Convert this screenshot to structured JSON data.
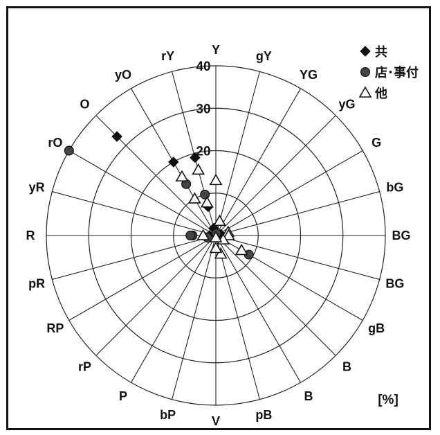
{
  "chart_data": {
    "type": "radar-scatter",
    "unit_label": "[%]",
    "r_ticks": [
      {
        "value": 20,
        "label": "20"
      },
      {
        "value": 30,
        "label": "30"
      },
      {
        "value": 40,
        "label": "40"
      }
    ],
    "r_rings": [
      10,
      20,
      30,
      40
    ],
    "r_max": 40,
    "directions": [
      "Y",
      "gY",
      "YG",
      "yG",
      "G",
      "bG",
      "BG",
      "BG",
      "gB",
      "B",
      "B",
      "pB",
      "V",
      "bP",
      "P",
      "rP",
      "RP",
      "pR",
      "R",
      "yR",
      "rO",
      "O",
      "yO",
      "rY"
    ],
    "legend_position": "top-right",
    "series": [
      {
        "name": "共",
        "marker": "diamond",
        "color": "#111111",
        "points": [
          {
            "dir": "O",
            "r": 33
          },
          {
            "dir": "rY",
            "r": 19
          },
          {
            "dir": "yO",
            "r": 20
          },
          {
            "dir": "rY",
            "r": 7
          },
          {
            "dir": "rY",
            "r": 1.8
          },
          {
            "dir": "bG",
            "r": 1.2
          },
          {
            "dir": "R",
            "r": 1.5
          }
        ]
      },
      {
        "name": "店･事付",
        "marker": "circle",
        "color": "#444444",
        "points": [
          {
            "dir": "rO",
            "r": 40
          },
          {
            "dir": "yO",
            "r": 14
          },
          {
            "dir": "rY",
            "r": 10
          },
          {
            "dir": "gY",
            "r": 0.5
          },
          {
            "dir": "R",
            "r": 5.5
          },
          {
            "dir": "R",
            "r": 6
          },
          {
            "dir": "pR",
            "r": 2
          },
          {
            "dir": "gB",
            "r": 9
          }
        ]
      },
      {
        "name": "他",
        "marker": "triangle",
        "color": "#111111",
        "points": [
          {
            "dir": "Y",
            "r": 13
          },
          {
            "dir": "rY",
            "r": 16
          },
          {
            "dir": "yO",
            "r": 16
          },
          {
            "dir": "yO",
            "r": 10
          },
          {
            "dir": "rY",
            "r": 8
          },
          {
            "dir": "gY",
            "r": 3.5
          },
          {
            "dir": "bG",
            "r": 3
          },
          {
            "dir": "BG",
            "r": 3
          },
          {
            "dir": "gB",
            "r": 2
          },
          {
            "dir": "gB",
            "r": 7
          },
          {
            "dir": "pB",
            "r": 4.5
          },
          {
            "dir": "V",
            "r": 3
          },
          {
            "dir": "V",
            "r": 0.5
          },
          {
            "dir": "R",
            "r": 3
          }
        ]
      }
    ]
  }
}
